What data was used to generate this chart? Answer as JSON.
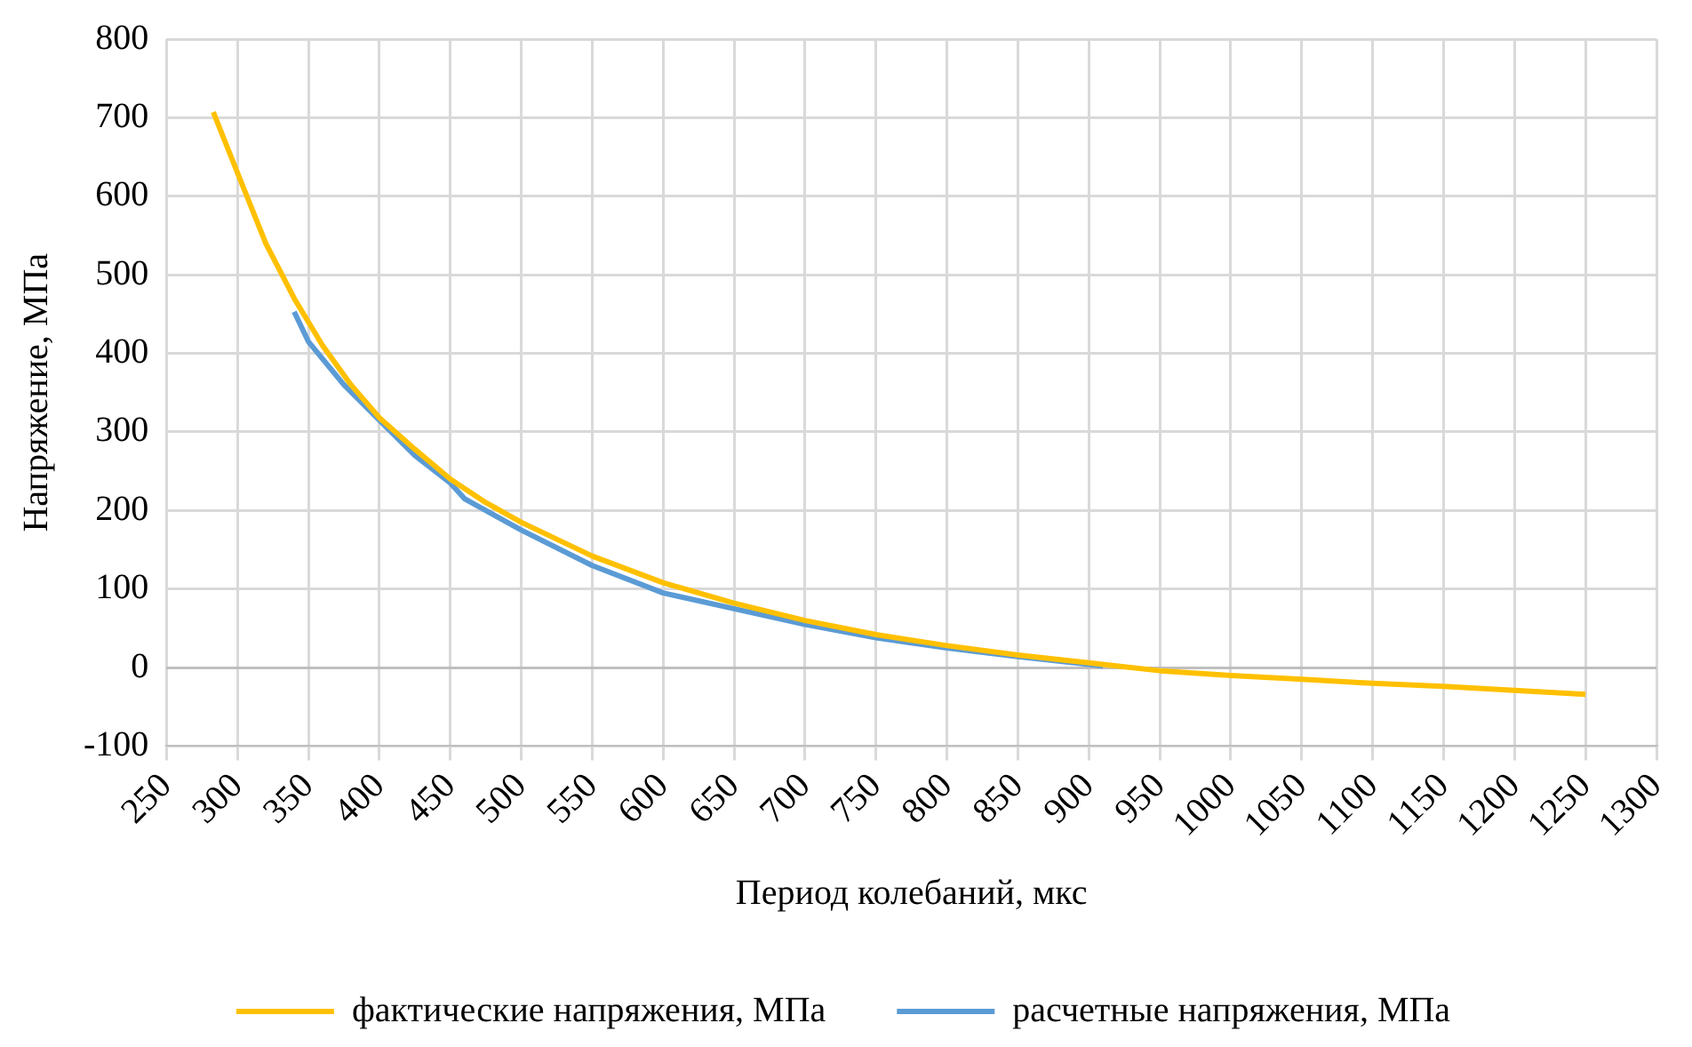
{
  "chart_data": {
    "type": "line",
    "xlabel": "Период колебаний, мкс",
    "ylabel": "Напряжение, МПа",
    "series": [
      {
        "name": "фактические напряжения, МПа",
        "color": "#ffc000",
        "x": [
          283,
          300,
          320,
          340,
          360,
          380,
          400,
          425,
          450,
          475,
          500,
          550,
          600,
          650,
          700,
          750,
          800,
          850,
          900,
          950,
          1000,
          1050,
          1100,
          1150,
          1200,
          1250
        ],
        "values": [
          707,
          630,
          540,
          470,
          410,
          360,
          318,
          278,
          240,
          210,
          185,
          142,
          108,
          82,
          60,
          42,
          28,
          16,
          6,
          -4,
          -10,
          -15,
          -20,
          -24,
          -29,
          -34
        ]
      },
      {
        "name": "расчетные напряжения, МПа",
        "color": "#5b9bd5",
        "x": [
          340,
          350,
          375,
          400,
          425,
          450,
          460,
          500,
          550,
          600,
          650,
          700,
          750,
          800,
          850,
          910
        ],
        "values": [
          453,
          415,
          360,
          315,
          270,
          235,
          215,
          175,
          130,
          95,
          75,
          55,
          38,
          25,
          14,
          2
        ]
      }
    ],
    "xlim": [
      250,
      1300
    ],
    "xticks": [
      250,
      300,
      350,
      400,
      450,
      500,
      550,
      600,
      650,
      700,
      750,
      800,
      850,
      900,
      950,
      1000,
      1050,
      1100,
      1150,
      1200,
      1250,
      1300
    ],
    "ylim": [
      -100,
      800
    ],
    "yticks": [
      -100,
      0,
      100,
      200,
      300,
      400,
      500,
      600,
      700,
      800
    ],
    "grid": true,
    "legend": "bottom",
    "marker": "none",
    "line_style": "solid"
  }
}
